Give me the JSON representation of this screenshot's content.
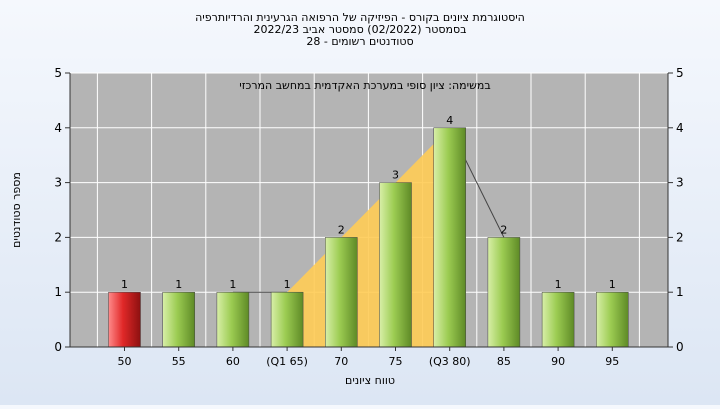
{
  "chart_data": {
    "type": "bar",
    "title_lines": [
      "היסטוגרמת ציונים בקורס - הפיזיקה של הרפואה הגרעינית והרדיותרפיה",
      "בסמסטר  (02/2022)  סמסטר אביב 2022/23",
      "סטודנטים רשומים - 28"
    ],
    "subtitle": "במשימה: ציון סופי במערכת האקדמית במחשב המרכזי",
    "xlabel": "טווח ציונים",
    "ylabel": "מספר סטודנטים",
    "categories": [
      "50",
      "55",
      "60",
      "(Q1 65)",
      "70",
      "75",
      "(Q3 80)",
      "85",
      "90",
      "95"
    ],
    "values": [
      1,
      1,
      1,
      1,
      2,
      3,
      4,
      2,
      1,
      1
    ],
    "highlight_index": 0,
    "ylim": [
      0,
      5
    ],
    "yticks": [
      0,
      1,
      2,
      3,
      4,
      5
    ],
    "grid": true,
    "colors": {
      "plot_bg": "#b4b4b4",
      "bar_main": "#9ccc52",
      "bar_light": "#d8efa8",
      "bar_dark": "#5e8a26",
      "highlight_main": "#e02828",
      "highlight_light": "#ff8a8a",
      "highlight_dark": "#8c1010",
      "iqr_area": "#ffcc55",
      "grid": "#ffffff"
    }
  }
}
